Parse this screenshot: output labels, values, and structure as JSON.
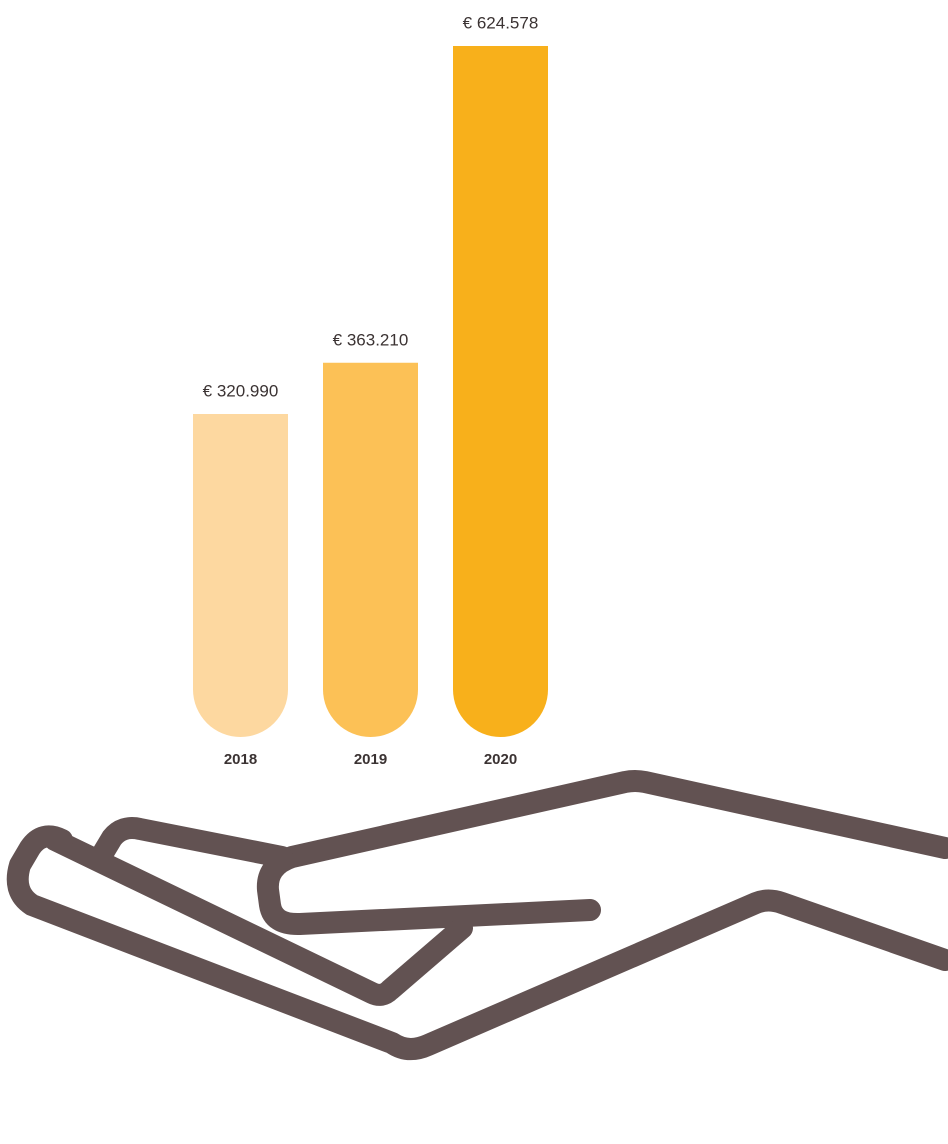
{
  "chart_data": {
    "type": "bar",
    "categories": [
      "2018",
      "2019",
      "2020"
    ],
    "values": [
      320990,
      363210,
      624578
    ],
    "value_labels": [
      "€ 320.990",
      "€ 363.210",
      "€ 624.578"
    ],
    "colors": [
      "#fdd8a0",
      "#fcc156",
      "#f8b01b"
    ]
  }
}
